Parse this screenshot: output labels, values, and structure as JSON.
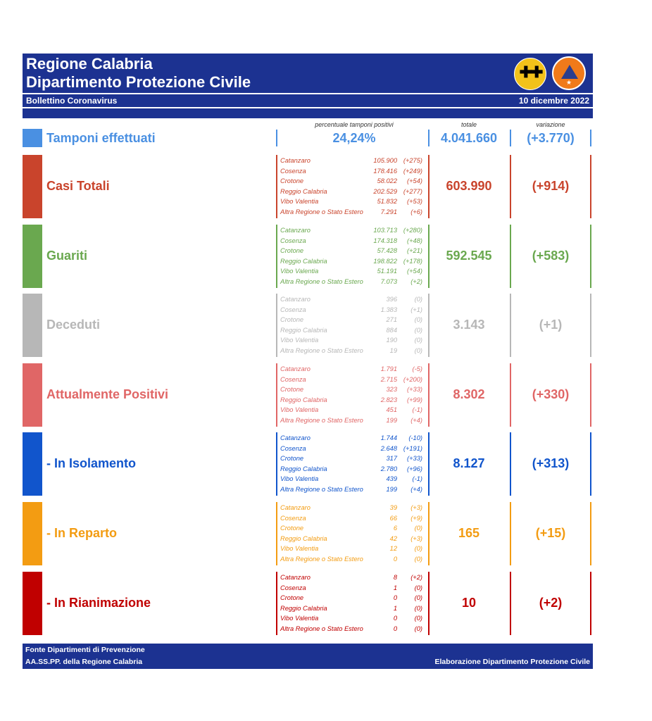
{
  "header": {
    "title_line1": "Regione Calabria",
    "title_line2": "Dipartimento Protezione Civile",
    "subtitle": "Bollettino Coronavirus",
    "date": "10 dicembre 2022"
  },
  "columns": {
    "positivity_header": "percentuale tamponi positivi",
    "total_header": "totale",
    "variation_header": "variazione"
  },
  "tamponi": {
    "label": "Tamponi effettuati",
    "positivity": "24,24%",
    "total": "4.041.660",
    "variation": "(+3.770)",
    "color": "#4a90e2"
  },
  "sections": [
    {
      "id": "casi-totali",
      "label": "Casi Totali",
      "color": "#c9442c",
      "total": "603.990",
      "variation": "(+914)",
      "rows": [
        {
          "name": "Catanzaro",
          "value": "105.900",
          "delta": "(+275)"
        },
        {
          "name": "Cosenza",
          "value": "178.416",
          "delta": "(+249)"
        },
        {
          "name": "Crotone",
          "value": "58.022",
          "delta": "(+54)"
        },
        {
          "name": "Reggio Calabria",
          "value": "202.529",
          "delta": "(+277)"
        },
        {
          "name": "Vibo Valentia",
          "value": "51.832",
          "delta": "(+53)"
        },
        {
          "name": "Altra Regione o Stato Estero",
          "value": "7.291",
          "delta": "(+6)"
        }
      ]
    },
    {
      "id": "guariti",
      "label": "Guariti",
      "color": "#6aa84f",
      "total": "592.545",
      "variation": "(+583)",
      "rows": [
        {
          "name": "Catanzaro",
          "value": "103.713",
          "delta": "(+280)"
        },
        {
          "name": "Cosenza",
          "value": "174.318",
          "delta": "(+48)"
        },
        {
          "name": "Crotone",
          "value": "57.428",
          "delta": "(+21)"
        },
        {
          "name": "Reggio Calabria",
          "value": "198.822",
          "delta": "(+178)"
        },
        {
          "name": "Vibo Valentia",
          "value": "51.191",
          "delta": "(+54)"
        },
        {
          "name": "Altra Regione o Stato Estero",
          "value": "7.073",
          "delta": "(+2)"
        }
      ]
    },
    {
      "id": "deceduti",
      "label": "Deceduti",
      "color": "#b7b7b7",
      "total": "3.143",
      "variation": "(+1)",
      "rows": [
        {
          "name": "Catanzaro",
          "value": "396",
          "delta": "(0)"
        },
        {
          "name": "Cosenza",
          "value": "1.383",
          "delta": "(+1)"
        },
        {
          "name": "Crotone",
          "value": "271",
          "delta": "(0)"
        },
        {
          "name": "Reggio Calabria",
          "value": "884",
          "delta": "(0)"
        },
        {
          "name": "Vibo Valentia",
          "value": "190",
          "delta": "(0)"
        },
        {
          "name": "Altra Regione o Stato Estero",
          "value": "19",
          "delta": "(0)"
        }
      ]
    },
    {
      "id": "attualmente-positivi",
      "label": "Attualmente Positivi",
      "color": "#e06666",
      "total": "8.302",
      "variation": "(+330)",
      "rows": [
        {
          "name": "Catanzaro",
          "value": "1.791",
          "delta": "(-5)"
        },
        {
          "name": "Cosenza",
          "value": "2.715",
          "delta": "(+200)"
        },
        {
          "name": "Crotone",
          "value": "323",
          "delta": "(+33)"
        },
        {
          "name": "Reggio Calabria",
          "value": "2.823",
          "delta": "(+99)"
        },
        {
          "name": "Vibo Valentia",
          "value": "451",
          "delta": "(-1)"
        },
        {
          "name": "Altra Regione o Stato Estero",
          "value": "199",
          "delta": "(+4)"
        }
      ]
    },
    {
      "id": "in-isolamento",
      "label": " - In Isolamento",
      "color": "#1155cc",
      "total": "8.127",
      "variation": "(+313)",
      "rows": [
        {
          "name": "Catanzaro",
          "value": "1.744",
          "delta": "(-10)"
        },
        {
          "name": "Cosenza",
          "value": "2.648",
          "delta": "(+191)"
        },
        {
          "name": "Crotone",
          "value": "317",
          "delta": "(+33)"
        },
        {
          "name": "Reggio Calabria",
          "value": "2.780",
          "delta": "(+96)"
        },
        {
          "name": "Vibo Valentia",
          "value": "439",
          "delta": "(-1)"
        },
        {
          "name": "Altra Regione o Stato Estero",
          "value": "199",
          "delta": "(+4)"
        }
      ]
    },
    {
      "id": "in-reparto",
      "label": " - In Reparto",
      "color": "#f39c12",
      "total": "165",
      "variation": "(+15)",
      "rows": [
        {
          "name": "Catanzaro",
          "value": "39",
          "delta": "(+3)"
        },
        {
          "name": "Cosenza",
          "value": "66",
          "delta": "(+9)"
        },
        {
          "name": "Crotone",
          "value": "6",
          "delta": "(0)"
        },
        {
          "name": "Reggio Calabria",
          "value": "42",
          "delta": "(+3)"
        },
        {
          "name": "Vibo Valentia",
          "value": "12",
          "delta": "(0)"
        },
        {
          "name": "Altra Regione o Stato Estero",
          "value": "0",
          "delta": "(0)"
        }
      ]
    },
    {
      "id": "in-rianimazione",
      "label": " - In Rianimazione",
      "color": "#c00000",
      "total": "10",
      "variation": "(+2)",
      "rows": [
        {
          "name": "Catanzaro",
          "value": "8",
          "delta": "(+2)"
        },
        {
          "name": "Cosenza",
          "value": "1",
          "delta": "(0)"
        },
        {
          "name": "Crotone",
          "value": "0",
          "delta": "(0)"
        },
        {
          "name": "Reggio Calabria",
          "value": "1",
          "delta": "(0)"
        },
        {
          "name": "Vibo Valentia",
          "value": "0",
          "delta": "(0)"
        },
        {
          "name": "Altra Regione o Stato Estero",
          "value": "0",
          "delta": "(0)"
        }
      ]
    }
  ],
  "footer": {
    "source_line1": "Fonte Dipartimenti di Prevenzione",
    "source_line2": "AA.SS.PP.  della Regione Calabria",
    "credit": "Elaborazione Dipartimento Protezione Civile"
  },
  "logos": {
    "region_logo": "calabria-crest-icon",
    "civil_protection_logo": "protezione-civile-logo-icon"
  }
}
